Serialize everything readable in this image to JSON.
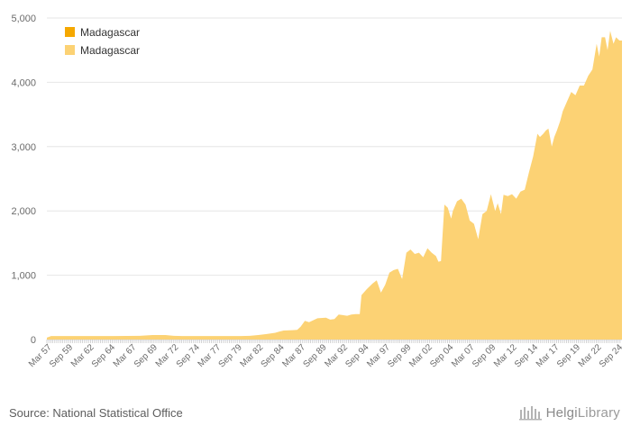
{
  "chart_data": {
    "type": "area",
    "title": "",
    "xlabel": "",
    "ylabel": "",
    "ylim": [
      0,
      5000
    ],
    "yticks": [
      0,
      1000,
      2000,
      3000,
      4000,
      5000
    ],
    "ytick_labels": [
      "0",
      "1,000",
      "2,000",
      "3,000",
      "4,000",
      "5,000"
    ],
    "xtick_labels": [
      "Mar 57",
      "Sep 59",
      "Mar 62",
      "Sep 64",
      "Mar 67",
      "Sep 69",
      "Mar 72",
      "Sep 74",
      "Mar 77",
      "Sep 79",
      "Mar 82",
      "Sep 84",
      "Mar 87",
      "Sep 89",
      "Mar 92",
      "Sep 94",
      "Mar 97",
      "Sep 99",
      "Mar 02",
      "Sep 04",
      "Mar 07",
      "Sep 09",
      "Mar 12",
      "Sep 14",
      "Mar 17",
      "Sep 19",
      "Mar 22",
      "Sep 24"
    ],
    "xtick_years": [
      1957.17,
      1959.67,
      1962.17,
      1964.67,
      1967.17,
      1969.67,
      1972.17,
      1974.67,
      1977.17,
      1979.67,
      1982.17,
      1984.67,
      1987.17,
      1989.67,
      1992.17,
      1994.67,
      1997.17,
      1999.67,
      2002.17,
      2004.67,
      2007.17,
      2009.67,
      2012.17,
      2014.67,
      2017.17,
      2019.67,
      2022.17,
      2024.67
    ],
    "x_range": [
      1957.0,
      2025.0
    ],
    "legend": {
      "placement": "top-left",
      "entries": [
        {
          "label": "Madagascar",
          "color": "#f5a800"
        },
        {
          "label": "Madagascar",
          "color": "#fcd274"
        }
      ]
    },
    "series": [
      {
        "name": "Madagascar",
        "color": "#fcd274",
        "x": [
          1957.0,
          1957.5,
          1960,
          1965,
          1968,
          1969.5,
          1971,
          1972,
          1973,
          1975,
          1978,
          1980,
          1981,
          1982,
          1983,
          1984,
          1984.5,
          1985,
          1986,
          1986.6,
          1987,
          1987.5,
          1988,
          1989,
          1990,
          1990.5,
          1991,
          1991.5,
          1992,
          1992.5,
          1993,
          1993.5,
          1994,
          1994.2,
          1994.8,
          1995.5,
          1996,
          1996.5,
          1997,
          1997.5,
          1998,
          1998.5,
          1999,
          1999.5,
          2000,
          2000.5,
          2001,
          2001.5,
          2002,
          2002.5,
          2003,
          2003.3,
          2003.6,
          2004,
          2004.4,
          2004.8,
          2005,
          2005.5,
          2006,
          2006.5,
          2007,
          2007.5,
          2008,
          2008.5,
          2009,
          2009.5,
          2010,
          2010.3,
          2010.7,
          2011,
          2011.5,
          2012,
          2012.5,
          2013,
          2013.5,
          2014,
          2014.5,
          2015,
          2015.3,
          2015.7,
          2016,
          2016.3,
          2016.7,
          2017,
          2017.3,
          2017.7,
          2018,
          2018.5,
          2019,
          2019.5,
          2020,
          2020.5,
          2021,
          2021.5,
          2022,
          2022.3,
          2022.6,
          2023,
          2023.3,
          2023.6,
          2024,
          2024.3,
          2024.7,
          2025.0
        ],
        "values": [
          30,
          55,
          55,
          55,
          58,
          70,
          70,
          58,
          55,
          55,
          55,
          55,
          58,
          70,
          85,
          105,
          125,
          140,
          145,
          150,
          200,
          290,
          270,
          330,
          340,
          310,
          320,
          390,
          380,
          370,
          390,
          395,
          395,
          690,
          780,
          870,
          920,
          730,
          850,
          1040,
          1080,
          1100,
          940,
          1350,
          1400,
          1330,
          1350,
          1280,
          1420,
          1350,
          1300,
          1210,
          1220,
          2100,
          2050,
          1880,
          2000,
          2150,
          2190,
          2100,
          1850,
          1800,
          1560,
          1950,
          2000,
          2260,
          2000,
          2120,
          1950,
          2250,
          2230,
          2260,
          2190,
          2300,
          2330,
          2600,
          2850,
          3200,
          3150,
          3200,
          3250,
          3280,
          3000,
          3150,
          3250,
          3400,
          3550,
          3700,
          3850,
          3800,
          3950,
          3950,
          4100,
          4200,
          4600,
          4400,
          4700,
          4700,
          4500,
          4800,
          4600,
          4700,
          4650,
          4650
        ]
      }
    ]
  },
  "footer": {
    "source": "Source: National Statistical Office",
    "brand_main": "Helgi",
    "brand_suffix": "Library"
  }
}
